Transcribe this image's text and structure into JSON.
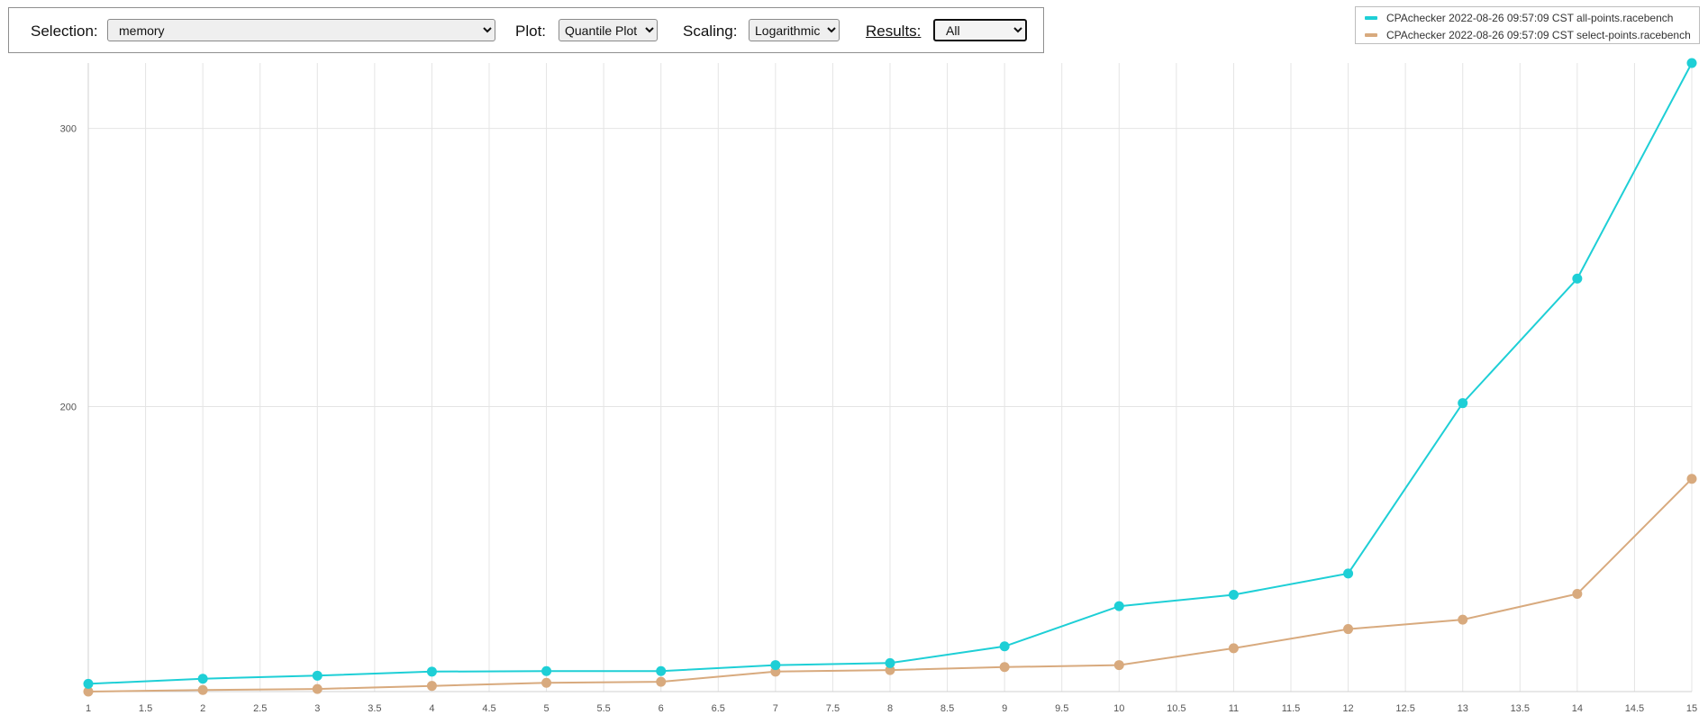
{
  "controls": {
    "selection_label": "Selection:",
    "selection_value": "memory",
    "plot_label": "Plot:",
    "plot_value": "Quantile Plot",
    "scaling_label": "Scaling:",
    "scaling_value": "Logarithmic",
    "results_label": "Results:",
    "results_value": "All"
  },
  "legend": [
    {
      "name": "CPAchecker 2022-08-26 09:57:09 CST all-points.racebench",
      "color": "#1ecfd6"
    },
    {
      "name": "CPAchecker 2022-08-26 09:57:09 CST select-points.racebench",
      "color": "#d8aa7e"
    }
  ],
  "chart_data": {
    "type": "line",
    "title": "",
    "xlabel": "",
    "ylabel": "",
    "yscale": "log",
    "grid": true,
    "xlim": [
      1,
      15
    ],
    "ylim": [
      132,
      330
    ],
    "x_ticks": [
      "1",
      "1.5",
      "2",
      "2.5",
      "3",
      "3.5",
      "4",
      "4.5",
      "5",
      "5.5",
      "6",
      "6.5",
      "7",
      "7.5",
      "8",
      "8.5",
      "9",
      "9.5",
      "10",
      "10.5",
      "11",
      "11.5",
      "12",
      "12.5",
      "13",
      "13.5",
      "14",
      "14.5",
      "15"
    ],
    "y_ticks": [
      "300",
      "200"
    ],
    "x": [
      1,
      2,
      3,
      4,
      5,
      6,
      7,
      8,
      9,
      10,
      11,
      12,
      13,
      14,
      15
    ],
    "series": [
      {
        "name": "CPAchecker 2022-08-26 09:57:09 CST all-points.racebench",
        "color": "#1ecfd6",
        "values": [
          133.5,
          134.5,
          135.1,
          135.9,
          136.0,
          136.0,
          137.2,
          137.6,
          141.0,
          149.5,
          152.0,
          156.8,
          201.0,
          241.0,
          330.0
        ]
      },
      {
        "name": "CPAchecker 2022-08-26 09:57:09 CST select-points.racebench",
        "color": "#d8aa7e",
        "values": [
          132.0,
          132.3,
          132.5,
          133.1,
          133.7,
          133.9,
          135.9,
          136.2,
          136.8,
          137.2,
          140.6,
          144.6,
          146.6,
          152.2,
          180.0
        ]
      }
    ]
  }
}
